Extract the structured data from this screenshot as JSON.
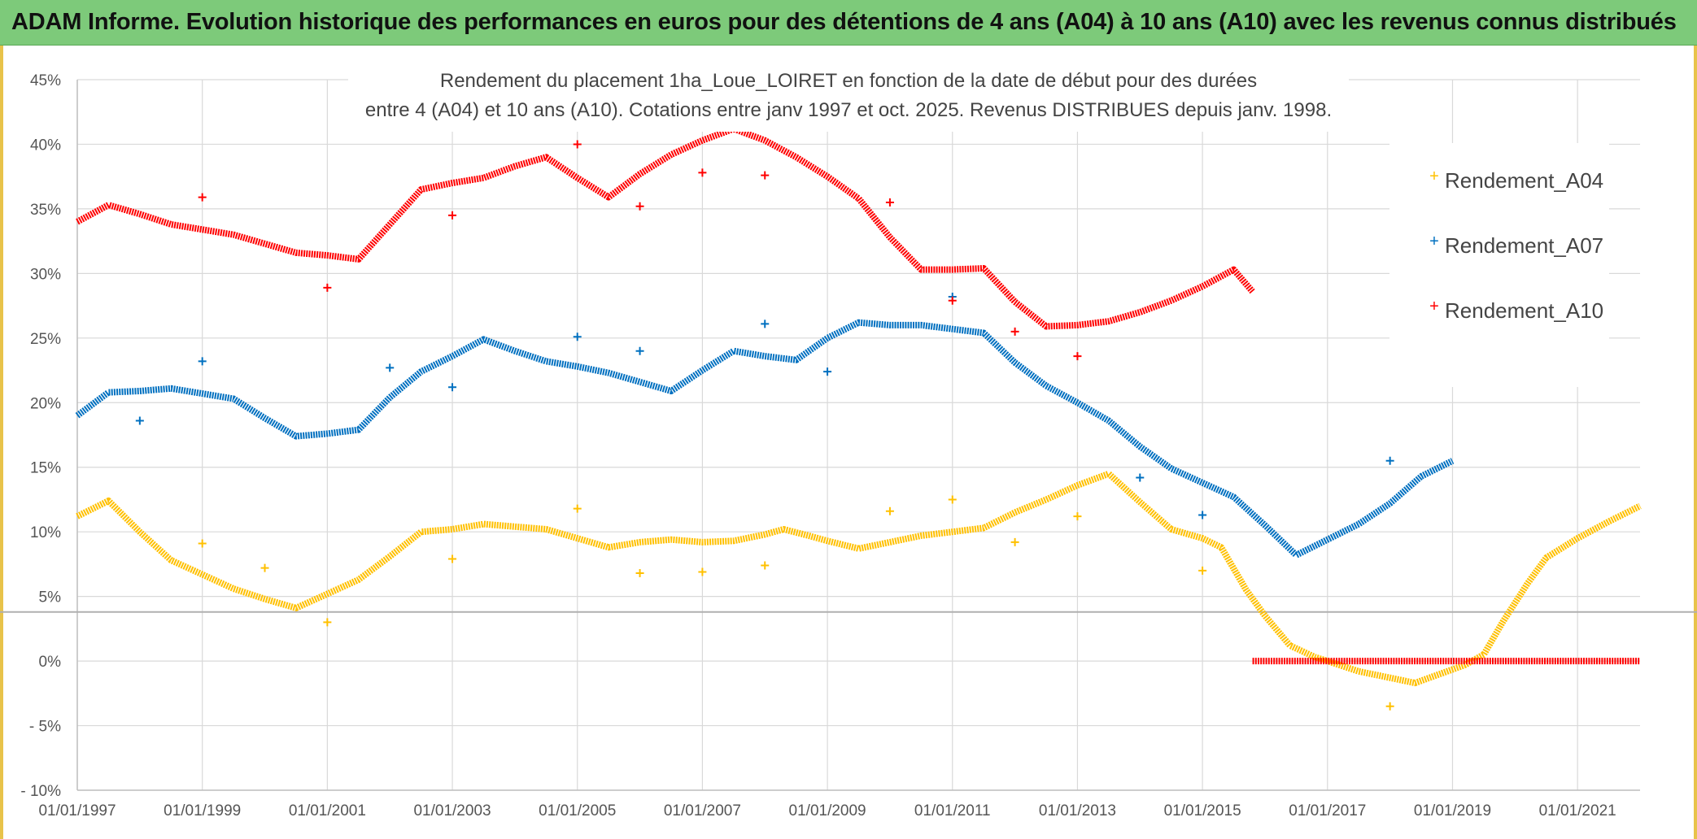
{
  "header": {
    "title": "ADAM Informe. Evolution historique des performances en euros pour des détentions de 4 ans (A04) à 10 ans (A10) avec les revenus connus distribués"
  },
  "colors": {
    "header_bg": "#7dca7a",
    "A04": "#ffc000",
    "A07": "#0070c0",
    "A10": "#ff0000",
    "grid": "#d9d9d9"
  },
  "chart_data": {
    "type": "scatter",
    "title_line1": "Rendement du placement 1ha_Loue_LOIRET en fonction de la date de début pour des durées",
    "title_line2": "entre 4 (A04) et 10 ans (A10). Cotations entre janv 1997 et oct. 2025. Revenus DISTRIBUES depuis janv. 1998.",
    "xlabel": "",
    "ylabel": "",
    "xlim": [
      1997.0,
      2022.0
    ],
    "ylim": [
      -10,
      45
    ],
    "y_ticks": [
      {
        "value": 45,
        "label": "45%"
      },
      {
        "value": 40,
        "label": "40%"
      },
      {
        "value": 35,
        "label": "35%"
      },
      {
        "value": 30,
        "label": "30%"
      },
      {
        "value": 25,
        "label": "25%"
      },
      {
        "value": 20,
        "label": "20%"
      },
      {
        "value": 15,
        "label": "15%"
      },
      {
        "value": 10,
        "label": "10%"
      },
      {
        "value": 5,
        "label": "5%"
      },
      {
        "value": 0,
        "label": "0%"
      },
      {
        "value": -5,
        "label": "- 5%"
      },
      {
        "value": -10,
        "label": "- 10%"
      }
    ],
    "x_ticks": [
      {
        "value": 1997.0,
        "label": "01/01/1997"
      },
      {
        "value": 1999.0,
        "label": "01/01/1999"
      },
      {
        "value": 2001.0,
        "label": "01/01/2001"
      },
      {
        "value": 2003.0,
        "label": "01/01/2003"
      },
      {
        "value": 2005.0,
        "label": "01/01/2005"
      },
      {
        "value": 2007.0,
        "label": "01/01/2007"
      },
      {
        "value": 2009.0,
        "label": "01/01/2009"
      },
      {
        "value": 2011.0,
        "label": "01/01/2011"
      },
      {
        "value": 2013.0,
        "label": "01/01/2013"
      },
      {
        "value": 2015.0,
        "label": "01/01/2015"
      },
      {
        "value": 2017.0,
        "label": "01/01/2017"
      },
      {
        "value": 2019.0,
        "label": "01/01/2019"
      },
      {
        "value": 2021.0,
        "label": "01/01/2021"
      }
    ],
    "reference_line": {
      "y": 3.8
    },
    "legend": [
      "Rendement_A04",
      "Rendement_A07",
      "Rendement_A10"
    ],
    "series": [
      {
        "name": "Rendement_A04",
        "color": "#ffc000",
        "line": [
          [
            1997.0,
            11.2
          ],
          [
            1997.5,
            12.4
          ],
          [
            1998.0,
            10.0
          ],
          [
            1998.5,
            7.8
          ],
          [
            1999.0,
            6.7
          ],
          [
            1999.5,
            5.6
          ],
          [
            2000.0,
            4.8
          ],
          [
            2000.5,
            4.1
          ],
          [
            2001.0,
            5.2
          ],
          [
            2001.5,
            6.3
          ],
          [
            2002.0,
            8.1
          ],
          [
            2002.5,
            10.0
          ],
          [
            2003.0,
            10.2
          ],
          [
            2003.5,
            10.6
          ],
          [
            2004.0,
            10.4
          ],
          [
            2004.5,
            10.2
          ],
          [
            2005.0,
            9.5
          ],
          [
            2005.5,
            8.8
          ],
          [
            2006.0,
            9.2
          ],
          [
            2006.5,
            9.4
          ],
          [
            2007.0,
            9.2
          ],
          [
            2007.5,
            9.3
          ],
          [
            2008.0,
            9.8
          ],
          [
            2008.3,
            10.2
          ],
          [
            2008.7,
            9.7
          ],
          [
            2009.0,
            9.3
          ],
          [
            2009.5,
            8.7
          ],
          [
            2010.0,
            9.2
          ],
          [
            2010.5,
            9.7
          ],
          [
            2011.0,
            10.0
          ],
          [
            2011.5,
            10.3
          ],
          [
            2012.0,
            11.5
          ],
          [
            2012.5,
            12.5
          ],
          [
            2013.0,
            13.6
          ],
          [
            2013.5,
            14.5
          ],
          [
            2014.0,
            12.3
          ],
          [
            2014.5,
            10.2
          ],
          [
            2015.0,
            9.5
          ],
          [
            2015.3,
            8.8
          ],
          [
            2015.7,
            5.5
          ],
          [
            2016.0,
            3.5
          ],
          [
            2016.4,
            1.2
          ],
          [
            2016.8,
            0.3
          ],
          [
            2017.0,
            0.0
          ],
          [
            2017.5,
            -0.8
          ],
          [
            2018.0,
            -1.3
          ],
          [
            2018.4,
            -1.7
          ],
          [
            2018.8,
            -1.0
          ],
          [
            2019.2,
            -0.3
          ],
          [
            2019.5,
            0.5
          ],
          [
            2019.8,
            3.0
          ],
          [
            2020.2,
            6.0
          ],
          [
            2020.5,
            8.0
          ],
          [
            2021.0,
            9.5
          ],
          [
            2021.5,
            10.8
          ],
          [
            2022.0,
            12.0
          ]
        ],
        "markers": [
          [
            1999.0,
            9.1
          ],
          [
            2000.0,
            7.2
          ],
          [
            2001.0,
            3.0
          ],
          [
            2003.0,
            7.9
          ],
          [
            2005.0,
            11.8
          ],
          [
            2006.0,
            6.8
          ],
          [
            2007.0,
            6.9
          ],
          [
            2008.0,
            7.4
          ],
          [
            2010.0,
            11.6
          ],
          [
            2011.0,
            12.5
          ],
          [
            2012.0,
            9.2
          ],
          [
            2013.0,
            11.2
          ],
          [
            2015.0,
            7.0
          ],
          [
            2018.0,
            -3.5
          ]
        ]
      },
      {
        "name": "Rendement_A07",
        "color": "#0070c0",
        "line": [
          [
            1997.0,
            19.0
          ],
          [
            1997.5,
            20.8
          ],
          [
            1998.0,
            20.9
          ],
          [
            1998.5,
            21.1
          ],
          [
            1999.0,
            20.7
          ],
          [
            1999.5,
            20.3
          ],
          [
            2000.0,
            18.8
          ],
          [
            2000.5,
            17.4
          ],
          [
            2001.0,
            17.6
          ],
          [
            2001.5,
            17.9
          ],
          [
            2002.0,
            20.4
          ],
          [
            2002.5,
            22.4
          ],
          [
            2003.0,
            23.6
          ],
          [
            2003.5,
            24.9
          ],
          [
            2004.0,
            24.0
          ],
          [
            2004.5,
            23.2
          ],
          [
            2005.0,
            22.8
          ],
          [
            2005.5,
            22.3
          ],
          [
            2006.0,
            21.6
          ],
          [
            2006.5,
            20.9
          ],
          [
            2007.0,
            22.5
          ],
          [
            2007.5,
            24.0
          ],
          [
            2008.0,
            23.6
          ],
          [
            2008.5,
            23.3
          ],
          [
            2009.0,
            25.0
          ],
          [
            2009.5,
            26.2
          ],
          [
            2010.0,
            26.0
          ],
          [
            2010.5,
            26.0
          ],
          [
            2011.0,
            25.7
          ],
          [
            2011.5,
            25.4
          ],
          [
            2012.0,
            23.1
          ],
          [
            2012.5,
            21.3
          ],
          [
            2013.0,
            20.0
          ],
          [
            2013.5,
            18.6
          ],
          [
            2014.0,
            16.6
          ],
          [
            2014.5,
            14.9
          ],
          [
            2015.0,
            13.8
          ],
          [
            2015.5,
            12.7
          ],
          [
            2016.0,
            10.5
          ],
          [
            2016.5,
            8.2
          ],
          [
            2017.0,
            9.4
          ],
          [
            2017.5,
            10.6
          ],
          [
            2018.0,
            12.2
          ],
          [
            2018.5,
            14.3
          ],
          [
            2019.0,
            15.5
          ]
        ],
        "markers": [
          [
            1998.0,
            18.6
          ],
          [
            1999.0,
            23.2
          ],
          [
            2002.0,
            22.7
          ],
          [
            2003.0,
            21.2
          ],
          [
            2005.0,
            25.1
          ],
          [
            2006.0,
            24.0
          ],
          [
            2008.0,
            26.1
          ],
          [
            2009.0,
            22.4
          ],
          [
            2011.0,
            28.2
          ],
          [
            2014.0,
            14.2
          ],
          [
            2015.0,
            11.3
          ],
          [
            2018.0,
            15.5
          ]
        ]
      },
      {
        "name": "Rendement_A10",
        "color": "#ff0000",
        "line": [
          [
            1997.0,
            34.0
          ],
          [
            1997.5,
            35.3
          ],
          [
            1998.0,
            34.6
          ],
          [
            1998.5,
            33.8
          ],
          [
            1999.0,
            33.4
          ],
          [
            1999.5,
            33.0
          ],
          [
            2000.0,
            32.3
          ],
          [
            2000.5,
            31.6
          ],
          [
            2001.0,
            31.4
          ],
          [
            2001.5,
            31.1
          ],
          [
            2002.0,
            33.8
          ],
          [
            2002.5,
            36.5
          ],
          [
            2003.0,
            37.0
          ],
          [
            2003.5,
            37.4
          ],
          [
            2004.0,
            38.3
          ],
          [
            2004.5,
            39.0
          ],
          [
            2005.0,
            37.4
          ],
          [
            2005.5,
            35.9
          ],
          [
            2006.0,
            37.7
          ],
          [
            2006.5,
            39.2
          ],
          [
            2007.0,
            40.3
          ],
          [
            2007.5,
            41.2
          ],
          [
            2008.0,
            40.3
          ],
          [
            2008.5,
            39.0
          ],
          [
            2009.0,
            37.5
          ],
          [
            2009.5,
            35.8
          ],
          [
            2010.0,
            32.8
          ],
          [
            2010.5,
            30.3
          ],
          [
            2011.0,
            30.3
          ],
          [
            2011.5,
            30.4
          ],
          [
            2012.0,
            27.8
          ],
          [
            2012.5,
            25.9
          ],
          [
            2013.0,
            26.0
          ],
          [
            2013.5,
            26.3
          ],
          [
            2014.0,
            27.0
          ],
          [
            2014.5,
            27.9
          ],
          [
            2015.0,
            29.0
          ],
          [
            2015.5,
            30.3
          ],
          [
            2015.8,
            28.6
          ]
        ],
        "zero_segment": [
          2015.8,
          2022.0,
          0
        ],
        "markers": [
          [
            1999.0,
            35.9
          ],
          [
            2001.0,
            28.9
          ],
          [
            2003.0,
            34.5
          ],
          [
            2005.0,
            40.0
          ],
          [
            2006.0,
            35.2
          ],
          [
            2007.0,
            37.8
          ],
          [
            2008.0,
            37.6
          ],
          [
            2010.0,
            35.5
          ],
          [
            2011.0,
            27.9
          ],
          [
            2012.0,
            25.5
          ],
          [
            2013.0,
            23.6
          ]
        ]
      }
    ]
  }
}
